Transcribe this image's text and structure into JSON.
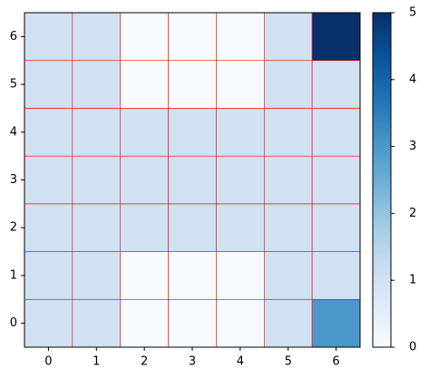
{
  "chart_data": {
    "type": "heatmap",
    "x": [
      0,
      1,
      2,
      3,
      4,
      5,
      6
    ],
    "y": [
      0,
      1,
      2,
      3,
      4,
      5,
      6
    ],
    "values": [
      [
        1,
        1,
        0,
        0,
        0,
        1,
        3
      ],
      [
        1,
        1,
        0,
        0,
        0,
        1,
        1
      ],
      [
        1,
        1,
        1,
        1,
        1,
        1,
        1
      ],
      [
        1,
        1,
        1,
        1,
        1,
        1,
        1
      ],
      [
        1,
        1,
        1,
        1,
        1,
        1,
        1
      ],
      [
        1,
        1,
        0,
        0,
        0,
        1,
        1
      ],
      [
        1,
        1,
        0,
        0,
        0,
        1,
        5
      ]
    ],
    "xlim": [
      -0.5,
      6.5
    ],
    "ylim": [
      -0.5,
      6.5
    ],
    "xticks": [
      0,
      1,
      2,
      3,
      4,
      5,
      6
    ],
    "yticks": [
      0,
      1,
      2,
      3,
      4,
      5,
      6
    ],
    "colormap": "Blues",
    "clim": [
      0,
      5
    ],
    "cticks": [
      0,
      1,
      2,
      3,
      4,
      5
    ],
    "edge_color": "#ff0000"
  }
}
